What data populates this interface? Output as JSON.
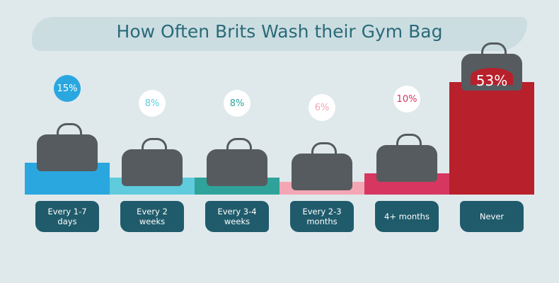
{
  "chart_data": {
    "type": "bar",
    "title": "How Often Brits Wash their Gym Bag",
    "categories": [
      "Every 1-7 days",
      "Every 2 weeks",
      "Every 3-4 weeks",
      "Every 2-3 months",
      "4+ months",
      "Never"
    ],
    "values": [
      15,
      8,
      8,
      6,
      10,
      53
    ],
    "value_labels": [
      "15%",
      "8%",
      "8%",
      "6%",
      "10%",
      "53%"
    ],
    "colors": [
      "#2aa7df",
      "#5fcbdc",
      "#2fa39a",
      "#f4a6b4",
      "#d6365f",
      "#b8202b"
    ]
  }
}
